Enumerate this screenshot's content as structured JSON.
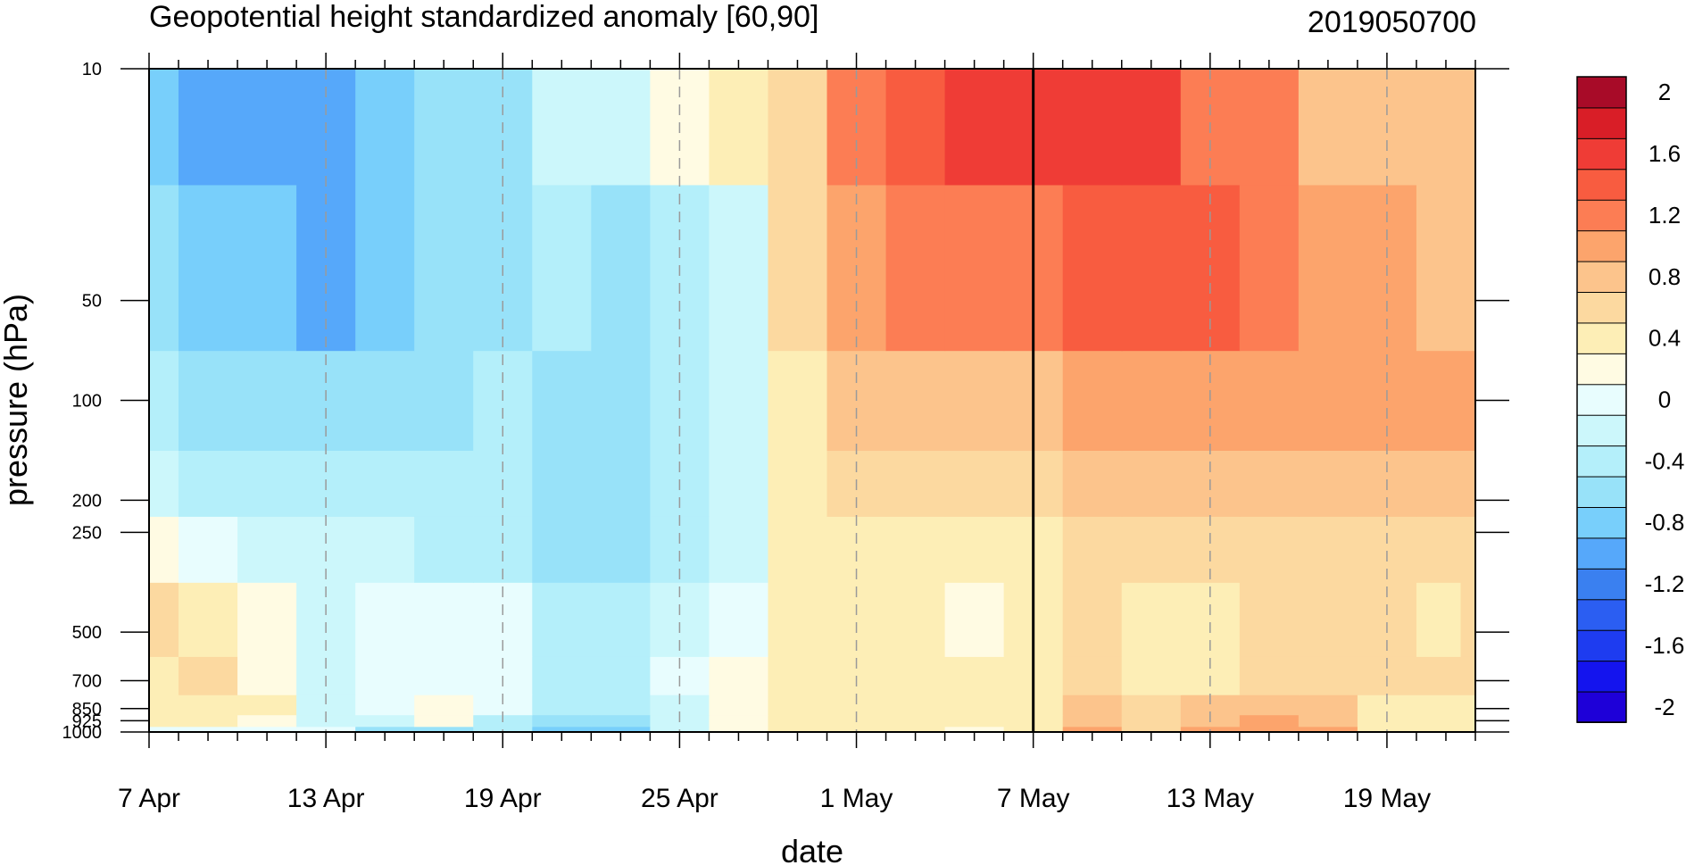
{
  "chart_data": {
    "type": "heatmap",
    "title": "Geopotential height standardized anomaly [60,90]",
    "subtitle": "2019050700",
    "xlabel": "date",
    "ylabel": "pressure (hPa)",
    "x": [
      "7 Apr",
      "9 Apr",
      "11 Apr",
      "13 Apr",
      "15 Apr",
      "17 Apr",
      "19 Apr",
      "21 Apr",
      "23 Apr",
      "25 Apr",
      "27 Apr",
      "29 Apr",
      "1 May",
      "3 May",
      "5 May",
      "7 May",
      "9 May",
      "11 May",
      "13 May",
      "15 May",
      "17 May",
      "19 May",
      "21 May",
      "22 May"
    ],
    "x_day_index": [
      0,
      2,
      4,
      6,
      8,
      10,
      12,
      14,
      16,
      18,
      20,
      22,
      24,
      26,
      28,
      30,
      32,
      34,
      36,
      38,
      40,
      42,
      44,
      45
    ],
    "x_tick_labels": [
      "7 Apr",
      "13 Apr",
      "19 Apr",
      "25 Apr",
      "1 May",
      "7 May",
      "13 May",
      "19 May"
    ],
    "x_tick_day_index": [
      0,
      6,
      12,
      18,
      24,
      30,
      36,
      42
    ],
    "xlim_day_index": [
      0,
      45
    ],
    "y_levels": [
      1000,
      925,
      850,
      700,
      500,
      250,
      200,
      100,
      50,
      10
    ],
    "y_tick_labels": [
      "10",
      "50",
      "100",
      "200",
      "250",
      "500",
      "700",
      "850",
      "925",
      "1000"
    ],
    "y_tick_values": [
      10,
      50,
      100,
      200,
      250,
      500,
      700,
      850,
      925,
      1000
    ],
    "y_scale": "log",
    "y_reversed": true,
    "analysis_line_day_index": 30,
    "values": [
      [
        0.0,
        0.0,
        0.1,
        0.0,
        -0.5,
        -0.5,
        -0.3,
        -0.7,
        -0.7,
        -0.2,
        0.2,
        0.5,
        0.5,
        0.5,
        0.3,
        0.4,
        1.0,
        0.6,
        1.0,
        1.1,
        1.0,
        0.5,
        0.5,
        0.5
      ],
      [
        0.4,
        0.5,
        0.3,
        -0.2,
        -0.1,
        0.2,
        -0.3,
        -0.6,
        -0.5,
        -0.1,
        0.3,
        0.5,
        0.5,
        0.5,
        0.5,
        0.5,
        0.9,
        0.6,
        0.9,
        1.0,
        0.9,
        0.5,
        0.5,
        0.5
      ],
      [
        0.5,
        0.5,
        0.4,
        -0.1,
        0.0,
        0.2,
        0.1,
        -0.4,
        -0.4,
        -0.1,
        0.3,
        0.5,
        0.5,
        0.5,
        0.5,
        0.5,
        0.8,
        0.6,
        0.8,
        0.9,
        0.8,
        0.5,
        0.5,
        0.5
      ],
      [
        0.5,
        0.6,
        0.3,
        -0.1,
        0.1,
        0.1,
        0.1,
        -0.3,
        -0.4,
        0.0,
        0.2,
        0.5,
        0.5,
        0.4,
        0.4,
        0.5,
        0.6,
        0.5,
        0.5,
        0.6,
        0.6,
        0.6,
        0.6,
        0.6
      ],
      [
        0.7,
        0.5,
        0.2,
        -0.1,
        0.1,
        0.0,
        0.1,
        -0.3,
        -0.4,
        -0.1,
        0.1,
        0.5,
        0.5,
        0.5,
        0.3,
        0.4,
        0.6,
        0.5,
        0.5,
        0.6,
        0.6,
        0.6,
        0.5,
        0.6
      ],
      [
        0.2,
        0.0,
        -0.1,
        -0.2,
        -0.2,
        -0.3,
        -0.3,
        -0.5,
        -0.5,
        -0.3,
        -0.1,
        0.4,
        0.5,
        0.5,
        0.4,
        0.5,
        0.7,
        0.6,
        0.7,
        0.7,
        0.6,
        0.6,
        0.6,
        0.6
      ],
      [
        -0.1,
        -0.3,
        -0.4,
        -0.4,
        -0.4,
        -0.4,
        -0.3,
        -0.5,
        -0.6,
        -0.3,
        -0.2,
        0.4,
        0.6,
        0.7,
        0.7,
        0.7,
        0.8,
        0.8,
        0.8,
        0.8,
        0.8,
        0.8,
        0.8,
        0.8
      ],
      [
        -0.4,
        -0.5,
        -0.6,
        -0.6,
        -0.6,
        -0.5,
        -0.4,
        -0.5,
        -0.6,
        -0.3,
        -0.2,
        0.4,
        0.8,
        0.9,
        0.9,
        0.8,
        1.0,
        1.1,
        1.1,
        1.1,
        1.0,
        1.0,
        1.0,
        1.0
      ],
      [
        -0.6,
        -0.7,
        -0.8,
        -0.9,
        -0.8,
        -0.6,
        -0.5,
        -0.4,
        -0.5,
        -0.3,
        -0.1,
        0.6,
        1.0,
        1.3,
        1.3,
        1.2,
        1.5,
        1.4,
        1.5,
        1.3,
        1.1,
        1.0,
        0.9,
        0.9
      ],
      [
        -0.8,
        -1.0,
        -1.0,
        -0.9,
        -0.7,
        -0.6,
        -0.5,
        -0.2,
        -0.2,
        0.2,
        0.4,
        0.6,
        1.2,
        1.4,
        1.7,
        1.7,
        1.7,
        1.6,
        1.3,
        1.2,
        0.9,
        0.8,
        0.8,
        0.8
      ]
    ],
    "colorbar": {
      "tick_labels": [
        "2",
        "1.6",
        "1.2",
        "0.8",
        "0.4",
        "0",
        "-0.4",
        "-0.8",
        "-1.2",
        "-1.6",
        "-2"
      ],
      "tick_values": [
        2,
        1.6,
        1.2,
        0.8,
        0.4,
        0,
        -0.4,
        -0.8,
        -1.2,
        -1.6,
        -2
      ],
      "levels": [
        -2,
        -1.8,
        -1.6,
        -1.4,
        -1.2,
        -1,
        -0.8,
        -0.6,
        -0.4,
        -0.2,
        0,
        0.2,
        0.4,
        0.6,
        0.8,
        1,
        1.2,
        1.4,
        1.6,
        1.8,
        2
      ],
      "colors": [
        "#1e00d8",
        "#1414ee",
        "#1e3cf0",
        "#2b5ef2",
        "#3a80f0",
        "#56a8fa",
        "#78cffb",
        "#98e2f9",
        "#b4effa",
        "#ccf7fb",
        "#e8fdfe",
        "#fffbe3",
        "#fdeeb6",
        "#fcd9a0",
        "#fcc48c",
        "#fca46c",
        "#fc7d54",
        "#f85c40",
        "#ef3c36",
        "#d91e27",
        "#a80b28"
      ]
    }
  }
}
